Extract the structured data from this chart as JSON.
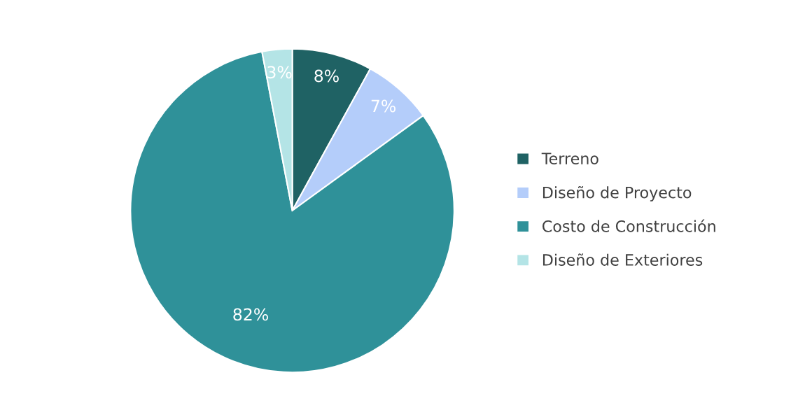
{
  "chart_data": {
    "type": "pie",
    "categories": [
      "Terreno",
      "Diseño de Proyecto",
      "Costo de Construcción",
      "Diseño de Exteriores"
    ],
    "values": [
      8,
      7,
      82,
      3
    ],
    "colors": [
      "#1f6264",
      "#b4cdfa",
      "#2f9199",
      "#b4e4e6"
    ],
    "value_labels": [
      "8%",
      "7%",
      "82%",
      "3%"
    ],
    "legend": "right"
  }
}
